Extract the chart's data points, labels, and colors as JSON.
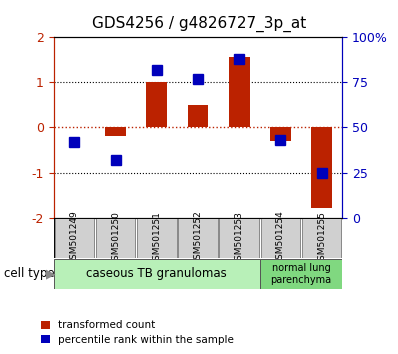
{
  "title": "GDS4256 / g4826727_3p_at",
  "samples": [
    "GSM501249",
    "GSM501250",
    "GSM501251",
    "GSM501252",
    "GSM501253",
    "GSM501254",
    "GSM501255"
  ],
  "red_values": [
    0.0,
    -0.18,
    1.0,
    0.5,
    1.55,
    -0.3,
    -1.78
  ],
  "blue_percentile": [
    42,
    32,
    82,
    77,
    88,
    43,
    25
  ],
  "ylim_left": [
    -2,
    2
  ],
  "ylim_right": [
    0,
    100
  ],
  "yticks_left": [
    -2,
    -1,
    0,
    1,
    2
  ],
  "yticks_right": [
    0,
    25,
    50,
    75,
    100
  ],
  "ytick_labels_right": [
    "0",
    "25",
    "50",
    "75",
    "100%"
  ],
  "ytick_labels_left": [
    "-2",
    "-1",
    "0",
    "1",
    "2"
  ],
  "group1_label": "caseous TB granulomas",
  "group2_label": "normal lung\nparenchyma",
  "group1_color": "#b8f0b8",
  "group2_color": "#80d880",
  "cell_type_label": "cell type",
  "legend1_label": "transformed count",
  "legend2_label": "percentile rank within the sample",
  "red_color": "#bb2200",
  "blue_color": "#0000bb",
  "bar_width": 0.5,
  "marker_size": 7
}
